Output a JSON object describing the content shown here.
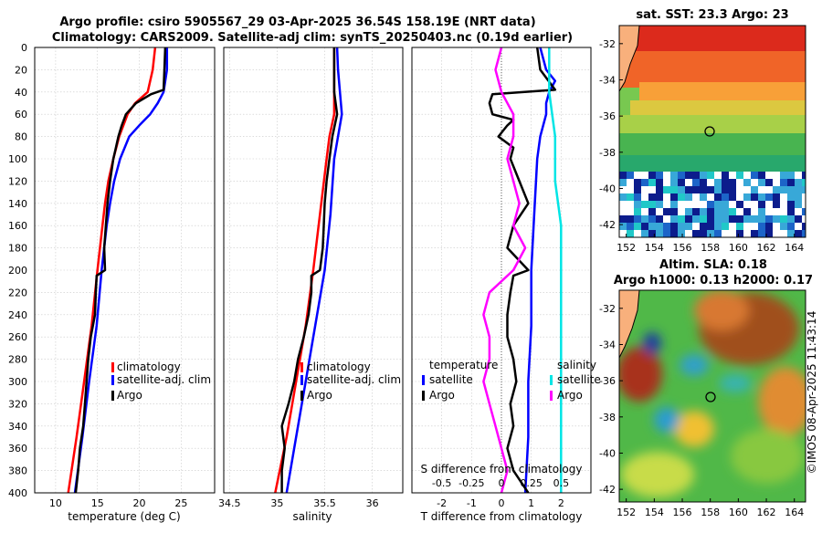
{
  "header": {
    "title_line1": "Argo profile: csiro 5905567_29 03-Apr-2025 36.54S 158.19E (NRT data)",
    "title_line2": "Climatology: CARS2009. Satellite-adj clim: synTS_20250403.nc (0.19d earlier)"
  },
  "depth_ticks": [
    "0",
    "20",
    "40",
    "60",
    "80",
    "100",
    "120",
    "140",
    "160",
    "180",
    "200",
    "220",
    "240",
    "260",
    "280",
    "300",
    "320",
    "340",
    "360",
    "380",
    "400"
  ],
  "colors": {
    "climatology": "#ff0000",
    "satellite": "#0000ff",
    "argo": "#000000",
    "salinity_sat": "#00e5e5",
    "salinity_argo": "#ff00ff"
  },
  "chart_data": [
    {
      "type": "line",
      "name": "temperature",
      "xlabel": "temperature (deg C)",
      "xlim": [
        7.5,
        29
      ],
      "xticks": [
        10,
        15,
        20,
        25
      ],
      "xtick_labels": [
        "10",
        "15",
        "20",
        "25"
      ],
      "ylim": [
        0,
        400
      ],
      "legend": [
        "climatology",
        "satellite-adj. clim",
        "Argo"
      ],
      "legend_position": "center-right",
      "series": [
        {
          "name": "climatology",
          "color": "#ff0000",
          "depth": [
            0,
            20,
            40,
            50,
            60,
            80,
            100,
            120,
            140,
            160,
            200,
            250,
            300,
            350,
            400
          ],
          "values": [
            21.9,
            21.6,
            21.0,
            19.5,
            18.6,
            17.6,
            16.9,
            16.3,
            15.9,
            15.6,
            15.0,
            14.3,
            13.4,
            12.5,
            11.5
          ]
        },
        {
          "name": "satellite-adj. clim",
          "color": "#0000ff",
          "depth": [
            0,
            20,
            40,
            50,
            60,
            70,
            80,
            100,
            120,
            140,
            160,
            200,
            250,
            300,
            350,
            400
          ],
          "values": [
            23.3,
            23.3,
            22.9,
            22.2,
            21.3,
            20.0,
            18.8,
            17.7,
            17.0,
            16.5,
            16.1,
            15.5,
            14.9,
            14.0,
            13.2,
            12.3
          ]
        },
        {
          "name": "Argo",
          "color": "#000000",
          "depth": [
            0,
            20,
            38,
            42,
            50,
            60,
            70,
            80,
            90,
            100,
            120,
            140,
            160,
            180,
            200,
            205,
            220,
            240,
            260,
            280,
            300,
            320,
            340,
            360,
            380,
            400
          ],
          "values": [
            23.1,
            23.0,
            22.9,
            21.4,
            19.6,
            18.4,
            17.9,
            17.5,
            17.2,
            16.9,
            16.5,
            16.2,
            16.0,
            15.8,
            15.9,
            14.9,
            14.8,
            14.7,
            14.2,
            13.9,
            13.7,
            13.5,
            13.3,
            12.9,
            12.7,
            12.4
          ]
        }
      ]
    },
    {
      "type": "line",
      "name": "salinity",
      "xlabel": "salinity",
      "xlim": [
        34.44,
        36.32
      ],
      "xticks": [
        34.5,
        35,
        35.5,
        36
      ],
      "xtick_labels": [
        "34.5",
        "35",
        "35.5",
        "36"
      ],
      "ylim": [
        0,
        400
      ],
      "legend": [
        "climatology",
        "satellite-adj. clim",
        "Argo"
      ],
      "legend_position": "center-right",
      "series": [
        {
          "name": "climatology",
          "color": "#ff0000",
          "depth": [
            0,
            20,
            40,
            60,
            80,
            100,
            150,
            200,
            250,
            300,
            350,
            400
          ],
          "values": [
            35.6,
            35.6,
            35.6,
            35.6,
            35.55,
            35.52,
            35.45,
            35.38,
            35.3,
            35.2,
            35.1,
            34.98
          ]
        },
        {
          "name": "satellite-adj. clim",
          "color": "#0000ff",
          "depth": [
            0,
            20,
            40,
            60,
            80,
            100,
            150,
            200,
            250,
            300,
            350,
            400
          ],
          "values": [
            35.63,
            35.64,
            35.66,
            35.68,
            35.64,
            35.6,
            35.56,
            35.5,
            35.4,
            35.3,
            35.2,
            35.1
          ]
        },
        {
          "name": "Argo",
          "color": "#000000",
          "depth": [
            0,
            20,
            40,
            60,
            80,
            100,
            120,
            140,
            160,
            180,
            200,
            205,
            220,
            240,
            260,
            280,
            300,
            320,
            340,
            360,
            380,
            400
          ],
          "values": [
            35.6,
            35.6,
            35.6,
            35.63,
            35.58,
            35.55,
            35.52,
            35.5,
            35.49,
            35.48,
            35.45,
            35.36,
            35.36,
            35.33,
            35.28,
            35.22,
            35.18,
            35.12,
            35.05,
            35.08,
            35.05,
            35.05
          ]
        }
      ]
    },
    {
      "type": "line",
      "name": "difference",
      "xlabel": "T difference from climatology",
      "x2label": "S difference from climatology",
      "xlim": [
        -3,
        3
      ],
      "xticks": [
        -2,
        -1,
        0,
        1,
        2
      ],
      "xtick_labels": [
        "-2",
        "-1",
        "0",
        "1",
        "2"
      ],
      "x2ticks": [
        -2,
        -1,
        0,
        1,
        2
      ],
      "x2tick_labels": [
        "-0.5",
        "-0.25",
        "0",
        "0.25",
        "0.5"
      ],
      "ylim": [
        0,
        400
      ],
      "legend_temperature": {
        "title": "temperature",
        "entries": [
          "satellite",
          "Argo"
        ]
      },
      "legend_salinity": {
        "title": "salinity",
        "entries": [
          "satellite",
          "Argo"
        ]
      },
      "series": [
        {
          "name": "temperature satellite",
          "color": "#0000ff",
          "depth": [
            0,
            20,
            30,
            40,
            50,
            60,
            80,
            100,
            150,
            200,
            250,
            300,
            350,
            400
          ],
          "values": [
            1.3,
            1.5,
            1.8,
            1.6,
            1.5,
            1.5,
            1.3,
            1.2,
            1.1,
            1.0,
            1.0,
            0.9,
            0.9,
            0.8
          ]
        },
        {
          "name": "temperature Argo",
          "color": "#000000",
          "depth": [
            0,
            20,
            38,
            42,
            50,
            60,
            65,
            70,
            80,
            90,
            100,
            120,
            140,
            160,
            180,
            200,
            205,
            220,
            240,
            260,
            280,
            300,
            320,
            340,
            360,
            380,
            400
          ],
          "values": [
            1.2,
            1.3,
            1.8,
            -0.3,
            -0.4,
            -0.3,
            0.4,
            0.2,
            -0.1,
            0.4,
            0.3,
            0.6,
            0.9,
            0.4,
            0.2,
            0.9,
            0.4,
            0.3,
            0.2,
            0.2,
            0.4,
            0.5,
            0.3,
            0.4,
            0.2,
            0.4,
            0.9
          ]
        },
        {
          "name": "salinity satellite",
          "color": "#00e5e5",
          "depth": [
            0,
            40,
            80,
            120,
            160,
            200,
            250,
            300,
            350,
            400
          ],
          "values": [
            0.4,
            0.4,
            0.45,
            0.45,
            0.5,
            0.5,
            0.5,
            0.5,
            0.5,
            0.5
          ]
        },
        {
          "name": "salinity Argo",
          "color": "#ff00ff",
          "depth": [
            0,
            20,
            40,
            60,
            80,
            100,
            120,
            140,
            160,
            180,
            200,
            220,
            240,
            260,
            280,
            300,
            320,
            340,
            360,
            380,
            400
          ],
          "values": [
            0,
            -0.05,
            0,
            0.1,
            0.1,
            0.05,
            0.1,
            0.15,
            0.1,
            0.2,
            0.1,
            -0.1,
            -0.15,
            -0.1,
            -0.1,
            -0.15,
            -0.1,
            -0.05,
            0,
            0.05,
            0
          ]
        }
      ]
    }
  ],
  "maps": {
    "sst_title": "sat. SST: 23.3 Argo: 23",
    "sla_title_line1": "Altim. SLA: 0.18",
    "sla_title_line2": "Argo h1000: 0.13 h2000: 0.17",
    "lon_ticks": [
      "152",
      "154",
      "156",
      "158",
      "160",
      "162",
      "164"
    ],
    "lat_ticks": [
      "-32",
      "-34",
      "-36",
      "-38",
      "-40",
      "-42"
    ],
    "argo_position": {
      "lon": 158.19,
      "lat": -36.54
    },
    "lon_range": [
      151.5,
      164.8
    ],
    "lat_range": [
      -42.7,
      -31
    ]
  },
  "watermark": "©IMOS 08-Apr-2025 11:43:14"
}
